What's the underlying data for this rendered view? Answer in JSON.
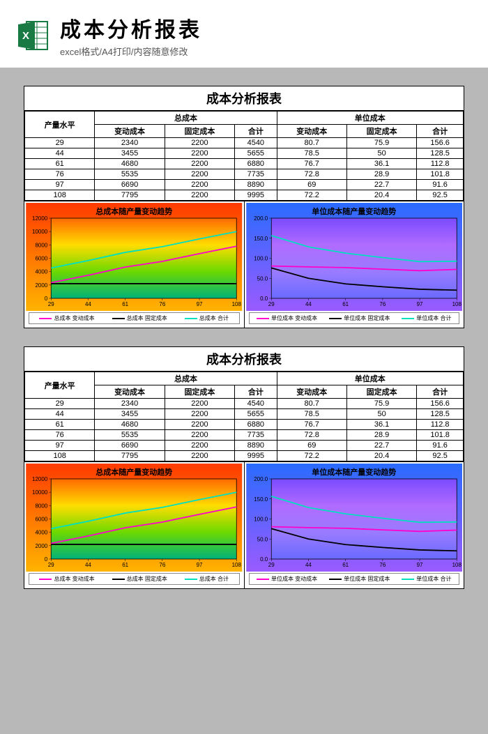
{
  "header": {
    "title": "成本分析报表",
    "subtitle": "excel格式/A4打印/内容随意修改"
  },
  "sheet": {
    "title": "成本分析报表",
    "row_header": "产量水平",
    "group1": "总成本",
    "group2": "单位成本",
    "col_var": "变动成本",
    "col_fix": "固定成本",
    "col_sum": "合计",
    "categories": [
      "29",
      "44",
      "61",
      "76",
      "97",
      "108"
    ],
    "total_cost": {
      "variable": [
        2340,
        3455,
        4680,
        5535,
        6690,
        7795
      ],
      "fixed": [
        2200,
        2200,
        2200,
        2200,
        2200,
        2200
      ],
      "sum": [
        4540,
        5655,
        6880,
        7735,
        8890,
        9995
      ]
    },
    "unit_cost": {
      "variable": [
        80.7,
        78.5,
        76.7,
        72.8,
        69.0,
        72.2
      ],
      "fixed": [
        75.9,
        50.0,
        36.1,
        28.9,
        22.7,
        20.4
      ],
      "sum": [
        156.6,
        128.5,
        112.8,
        101.8,
        91.6,
        92.5
      ]
    }
  },
  "chart1": {
    "title": "总成本随产量变动趋势",
    "type": "line",
    "xlabels": [
      "29",
      "44",
      "61",
      "76",
      "97",
      "108"
    ],
    "ylim": [
      0,
      12000
    ],
    "ytick_step": 2000,
    "series": [
      {
        "name": "总成本 变动成本",
        "color": "#ff00cc",
        "values": [
          2340,
          3455,
          4680,
          5535,
          6690,
          7795
        ]
      },
      {
        "name": "总成本 固定成本",
        "color": "#000000",
        "values": [
          2200,
          2200,
          2200,
          2200,
          2200,
          2200
        ]
      },
      {
        "name": "总成本 合计",
        "color": "#00e0c0",
        "values": [
          4540,
          5655,
          6880,
          7735,
          8890,
          9995
        ]
      }
    ],
    "bg_gradient": [
      "#ff6a00",
      "#ffdd00",
      "#6bd900",
      "#00b37a"
    ],
    "frame_gradient": [
      "#ff3b00",
      "#ffb300"
    ],
    "label_fontsize": 8
  },
  "chart2": {
    "title": "单位成本随产量变动趋势",
    "type": "line",
    "xlabels": [
      "29",
      "44",
      "61",
      "76",
      "97",
      "108"
    ],
    "ylim": [
      0,
      200
    ],
    "ytick_step": 50,
    "ytick_decimals": 1,
    "series": [
      {
        "name": "单位成本 变动成本",
        "color": "#ff00cc",
        "values": [
          80.7,
          78.5,
          76.7,
          72.8,
          69.0,
          72.2
        ]
      },
      {
        "name": "单位成本 固定成本",
        "color": "#000000",
        "values": [
          75.9,
          50.0,
          36.1,
          28.9,
          22.7,
          20.4
        ]
      },
      {
        "name": "单位成本 合计",
        "color": "#00e0c0",
        "values": [
          156.6,
          128.5,
          112.8,
          101.8,
          91.6,
          92.5
        ]
      }
    ],
    "bg_gradient": [
      "#7a4bff",
      "#b06bff",
      "#9a7bff",
      "#6a6aff"
    ],
    "frame_gradient": [
      "#2a6bff",
      "#9a5bff"
    ],
    "label_fontsize": 8
  }
}
